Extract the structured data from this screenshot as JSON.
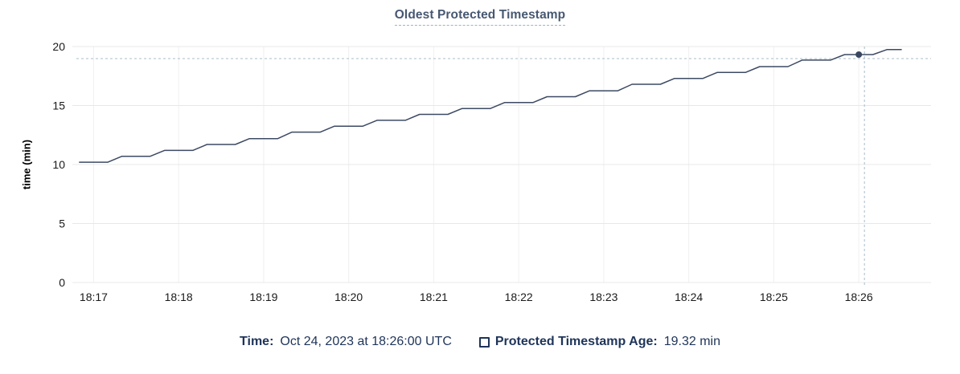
{
  "title": "Oldest Protected Timestamp",
  "colors": {
    "line": "#3d4a63",
    "point": "#3a4660",
    "grid_horizontal": "#e8e8e8",
    "grid_vertical": "#f0f0f0",
    "crosshair": "#a8bcc9",
    "tick_text": "#1a1a1a",
    "title_text": "#475872",
    "legend_text": "#1e3459"
  },
  "legend": {
    "time_label": "Time:",
    "time_value": "Oct 24, 2023 at 18:26:00 UTC",
    "series_label": "Protected Timestamp Age:",
    "series_value": "19.32 min"
  },
  "chart_data": {
    "type": "line",
    "title": "Oldest Protected Timestamp",
    "xlabel": "",
    "ylabel": "time (min)",
    "ylim": [
      0,
      20
    ],
    "yticks": [
      0,
      5,
      10,
      15,
      20
    ],
    "x_unit": "seconds offset from 18:17:00 UTC (Oct 24, 2023)",
    "x_domain": [
      -15,
      591
    ],
    "xticks": [
      {
        "t": 0,
        "label": "18:17"
      },
      {
        "t": 60,
        "label": "18:18"
      },
      {
        "t": 120,
        "label": "18:19"
      },
      {
        "t": 180,
        "label": "18:20"
      },
      {
        "t": 240,
        "label": "18:21"
      },
      {
        "t": 300,
        "label": "18:22"
      },
      {
        "t": 360,
        "label": "18:23"
      },
      {
        "t": 420,
        "label": "18:24"
      },
      {
        "t": 480,
        "label": "18:25"
      },
      {
        "t": 540,
        "label": "18:26"
      }
    ],
    "grid": true,
    "legend_position": "bottom",
    "series": [
      {
        "name": "Protected Timestamp Age",
        "points": [
          [
            -10,
            10.2
          ],
          [
            0,
            10.2
          ],
          [
            10,
            10.2
          ],
          [
            20,
            10.7
          ],
          [
            30,
            10.7
          ],
          [
            40,
            10.7
          ],
          [
            50,
            11.2
          ],
          [
            60,
            11.2
          ],
          [
            70,
            11.2
          ],
          [
            80,
            11.7
          ],
          [
            90,
            11.7
          ],
          [
            100,
            11.7
          ],
          [
            110,
            12.2
          ],
          [
            120,
            12.2
          ],
          [
            130,
            12.2
          ],
          [
            140,
            12.75
          ],
          [
            150,
            12.75
          ],
          [
            160,
            12.75
          ],
          [
            170,
            13.25
          ],
          [
            180,
            13.25
          ],
          [
            190,
            13.25
          ],
          [
            200,
            13.75
          ],
          [
            210,
            13.75
          ],
          [
            220,
            13.75
          ],
          [
            230,
            14.25
          ],
          [
            240,
            14.25
          ],
          [
            250,
            14.25
          ],
          [
            260,
            14.75
          ],
          [
            270,
            14.75
          ],
          [
            280,
            14.75
          ],
          [
            290,
            15.25
          ],
          [
            300,
            15.25
          ],
          [
            310,
            15.25
          ],
          [
            320,
            15.75
          ],
          [
            330,
            15.75
          ],
          [
            340,
            15.75
          ],
          [
            350,
            16.25
          ],
          [
            360,
            16.25
          ],
          [
            370,
            16.25
          ],
          [
            380,
            16.8
          ],
          [
            390,
            16.8
          ],
          [
            400,
            16.8
          ],
          [
            410,
            17.3
          ],
          [
            420,
            17.3
          ],
          [
            430,
            17.3
          ],
          [
            440,
            17.8
          ],
          [
            450,
            17.8
          ],
          [
            460,
            17.8
          ],
          [
            470,
            18.3
          ],
          [
            480,
            18.3
          ],
          [
            490,
            18.3
          ],
          [
            500,
            18.85
          ],
          [
            510,
            18.85
          ],
          [
            520,
            18.85
          ],
          [
            530,
            19.32
          ],
          [
            540,
            19.32
          ],
          [
            550,
            19.32
          ],
          [
            560,
            19.75
          ],
          [
            570,
            19.75
          ]
        ]
      }
    ],
    "highlight_point": {
      "t": 540,
      "value": 19.32,
      "time": "18:26:00",
      "date": "Oct 24, 2023"
    },
    "crosshair": {
      "t": 544,
      "value": 18.98
    }
  }
}
